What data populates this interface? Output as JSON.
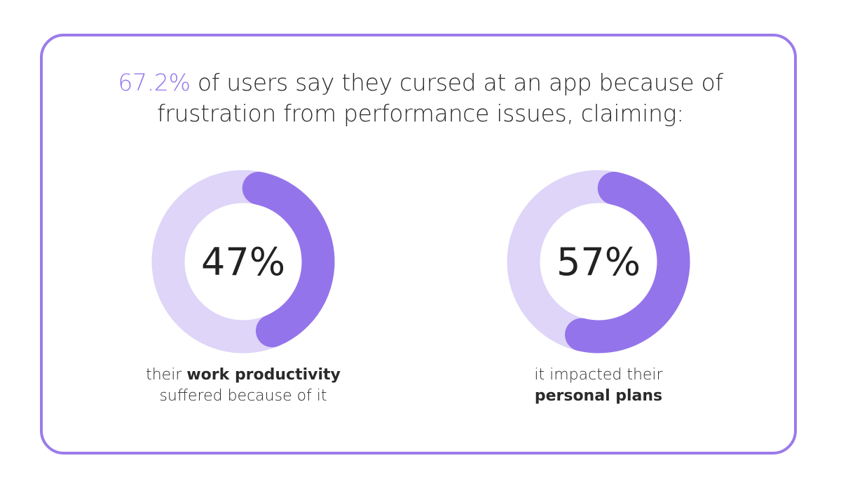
{
  "headline": {
    "highlight": "67.2%",
    "text_line1": " of users say they cursed at an app because of",
    "text_line2": "frustration from performance issues, claiming:"
  },
  "colors": {
    "accent": "#9474ea",
    "track": "#ded5f8",
    "border": "#9b7bea"
  },
  "chart_data": [
    {
      "type": "pie",
      "subtype": "donut",
      "value": 47,
      "label": "47%",
      "caption": {
        "pre": "their ",
        "bold": "work productivity",
        "post": "suffered because of it"
      }
    },
    {
      "type": "pie",
      "subtype": "donut",
      "value": 57,
      "label": "57%",
      "caption": {
        "pre": "it impacted their",
        "bold": "personal plans",
        "post": ""
      }
    }
  ]
}
